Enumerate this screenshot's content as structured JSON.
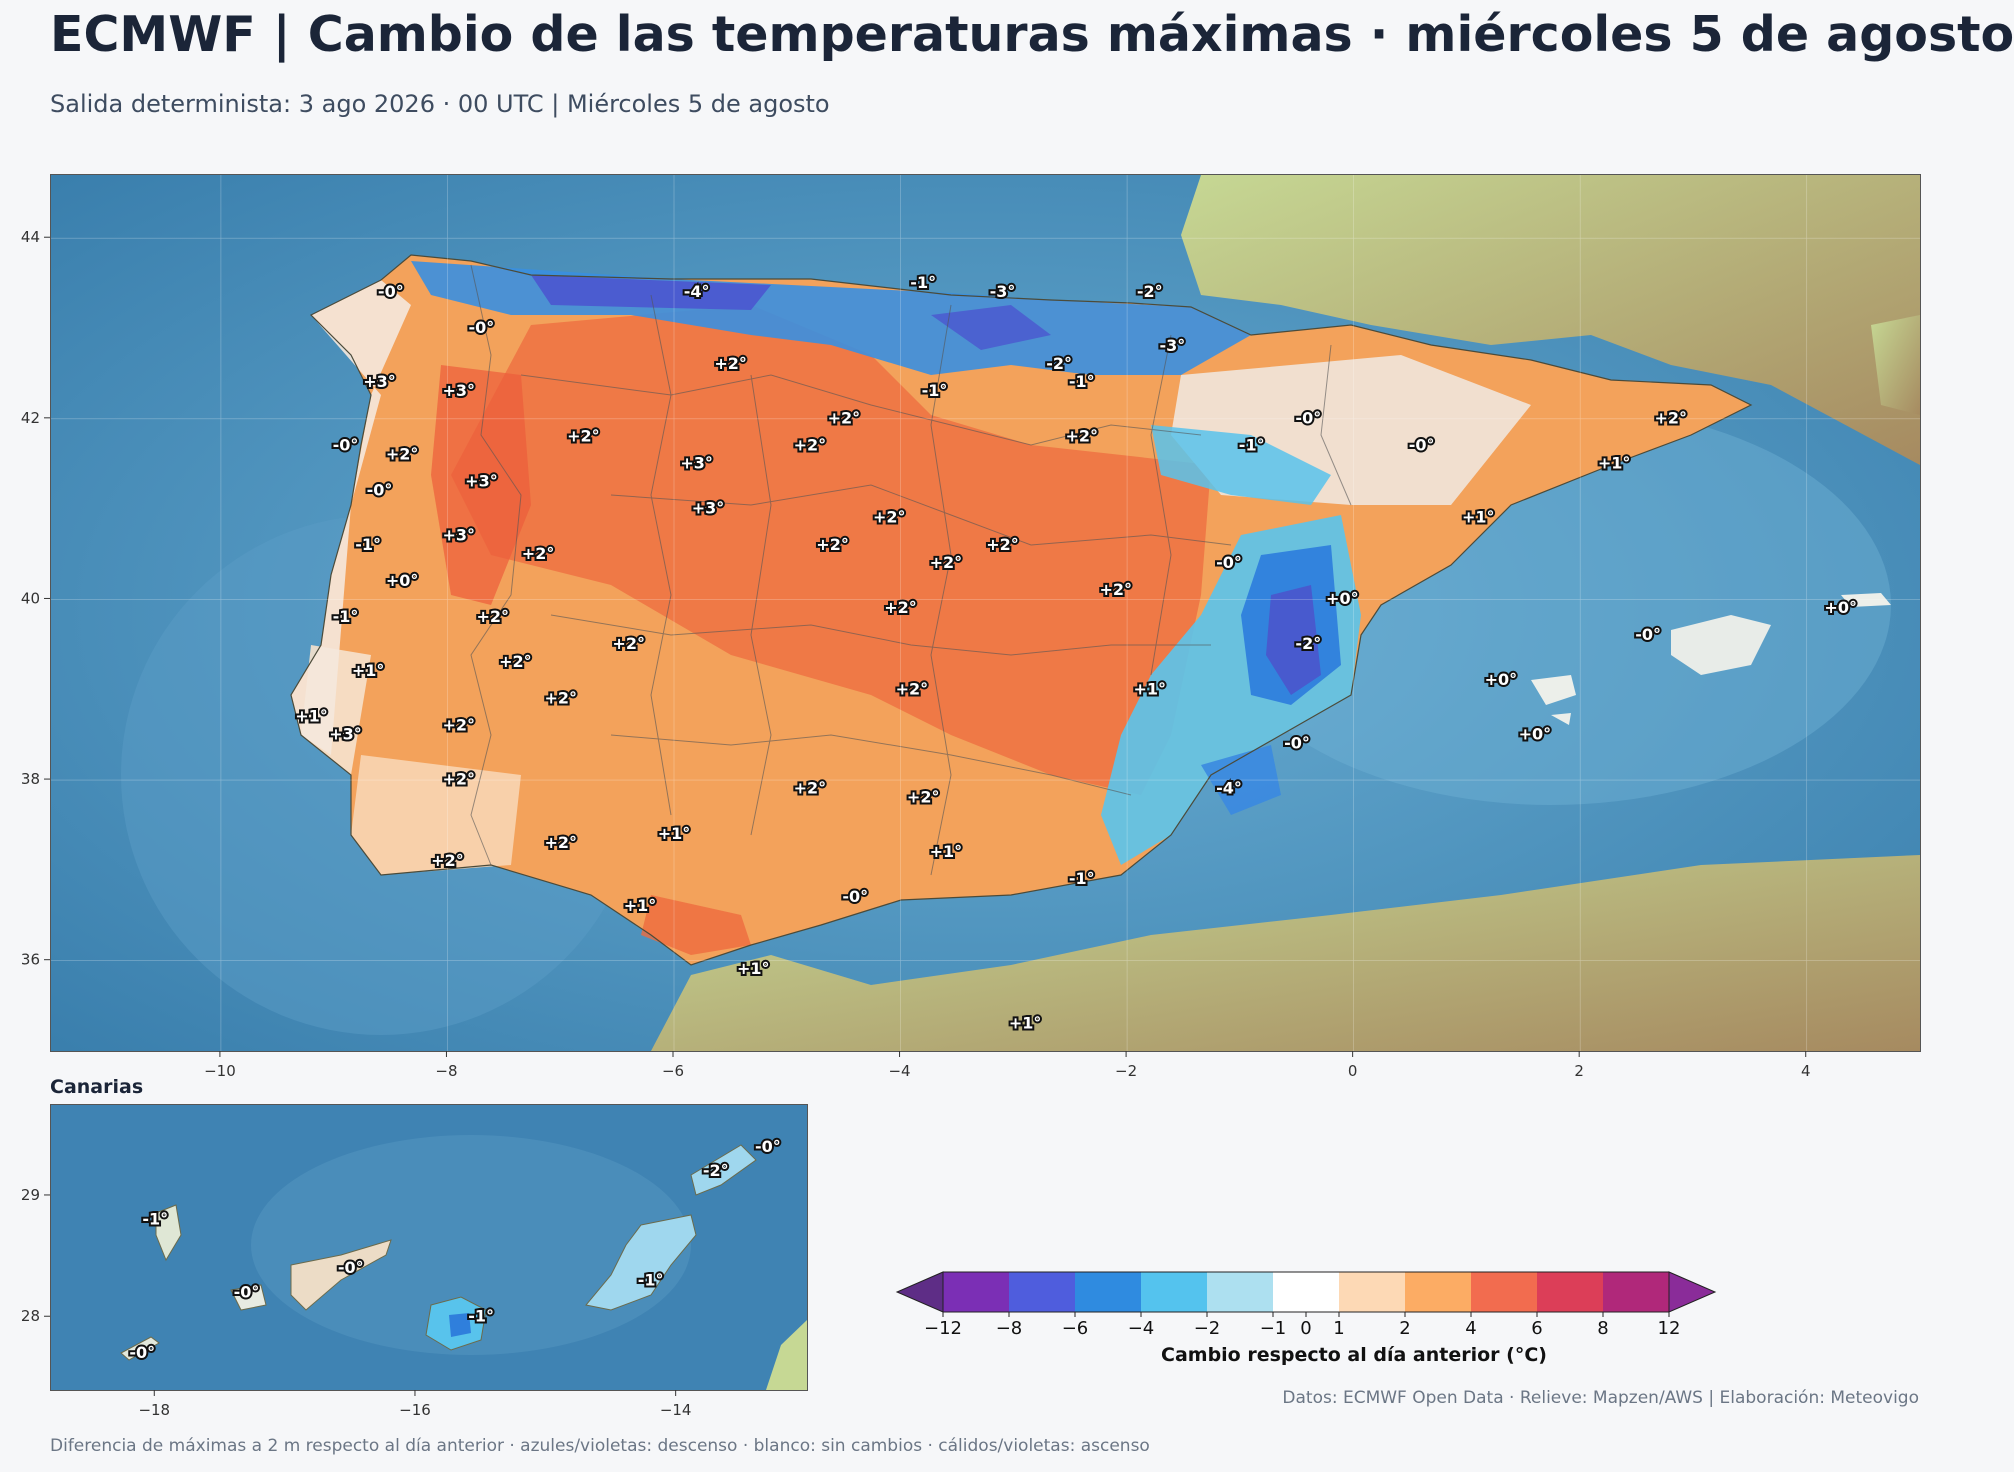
{
  "header": {
    "title": "ECMWF | Cambio de las temperaturas máximas · miércoles 5 de agosto",
    "subtitle": "Salida determinista: 3 ago 2026 · 00 UTC  |  Miércoles 5 de agosto"
  },
  "main_map": {
    "x_ticks": [
      "−10",
      "−8",
      "−6",
      "−4",
      "−2",
      "0",
      "2",
      "4"
    ],
    "y_ticks": [
      "44",
      "42",
      "40",
      "38",
      "36"
    ],
    "labels": [
      {
        "text": "-0°",
        "lon": -8.5,
        "lat": 43.4
      },
      {
        "text": "-0°",
        "lon": -7.7,
        "lat": 43.0
      },
      {
        "text": "-4°",
        "lon": -5.8,
        "lat": 43.4
      },
      {
        "text": "-1°",
        "lon": -3.8,
        "lat": 43.5
      },
      {
        "text": "-3°",
        "lon": -3.1,
        "lat": 43.4
      },
      {
        "text": "-2°",
        "lon": -1.8,
        "lat": 43.4
      },
      {
        "text": "-3°",
        "lon": -1.6,
        "lat": 42.8
      },
      {
        "text": "-2°",
        "lon": -2.6,
        "lat": 42.6
      },
      {
        "text": "-1°",
        "lon": -2.4,
        "lat": 42.4
      },
      {
        "text": "-1°",
        "lon": -3.7,
        "lat": 42.3
      },
      {
        "text": "+3°",
        "lon": -8.6,
        "lat": 42.4
      },
      {
        "text": "+3°",
        "lon": -7.9,
        "lat": 42.3
      },
      {
        "text": "+2°",
        "lon": -5.5,
        "lat": 42.6
      },
      {
        "text": "+2°",
        "lon": -4.5,
        "lat": 42.0
      },
      {
        "text": "+2°",
        "lon": -4.8,
        "lat": 41.7
      },
      {
        "text": "+2°",
        "lon": -6.8,
        "lat": 41.8
      },
      {
        "text": "-0°",
        "lon": -8.9,
        "lat": 41.7
      },
      {
        "text": "+2°",
        "lon": -8.4,
        "lat": 41.6
      },
      {
        "text": "+3°",
        "lon": -7.7,
        "lat": 41.3
      },
      {
        "text": "+3°",
        "lon": -5.8,
        "lat": 41.5
      },
      {
        "text": "+3°",
        "lon": -5.7,
        "lat": 41.0
      },
      {
        "text": "-0°",
        "lon": -8.6,
        "lat": 41.2
      },
      {
        "text": "+2°",
        "lon": -2.4,
        "lat": 41.8
      },
      {
        "text": "-0°",
        "lon": -0.4,
        "lat": 42.0
      },
      {
        "text": "-1°",
        "lon": -0.9,
        "lat": 41.7
      },
      {
        "text": "-0°",
        "lon": 0.6,
        "lat": 41.7
      },
      {
        "text": "+2°",
        "lon": 2.8,
        "lat": 42.0
      },
      {
        "text": "+1°",
        "lon": 2.3,
        "lat": 41.5
      },
      {
        "text": "+1°",
        "lon": 1.1,
        "lat": 40.9
      },
      {
        "text": "+2°",
        "lon": -4.1,
        "lat": 40.9
      },
      {
        "text": "+2°",
        "lon": -4.6,
        "lat": 40.6
      },
      {
        "text": "+2°",
        "lon": -3.1,
        "lat": 40.6
      },
      {
        "text": "+2°",
        "lon": -3.6,
        "lat": 40.4
      },
      {
        "text": "-1°",
        "lon": -8.7,
        "lat": 40.6
      },
      {
        "text": "+3°",
        "lon": -7.9,
        "lat": 40.7
      },
      {
        "text": "+2°",
        "lon": -7.2,
        "lat": 40.5
      },
      {
        "text": "+0°",
        "lon": -8.4,
        "lat": 40.2
      },
      {
        "text": "-0°",
        "lon": -1.1,
        "lat": 40.4
      },
      {
        "text": "+2°",
        "lon": -2.1,
        "lat": 40.1
      },
      {
        "text": "+0°",
        "lon": -0.1,
        "lat": 40.0
      },
      {
        "text": "+0°",
        "lon": 4.3,
        "lat": 39.9
      },
      {
        "text": "-1°",
        "lon": -8.9,
        "lat": 39.8
      },
      {
        "text": "+2°",
        "lon": -7.6,
        "lat": 39.8
      },
      {
        "text": "+2°",
        "lon": -4.0,
        "lat": 39.9
      },
      {
        "text": "+2°",
        "lon": -6.4,
        "lat": 39.5
      },
      {
        "text": "-2°",
        "lon": -0.4,
        "lat": 39.5
      },
      {
        "text": "-0°",
        "lon": 2.6,
        "lat": 39.6
      },
      {
        "text": "+1°",
        "lon": -8.7,
        "lat": 39.2
      },
      {
        "text": "+2°",
        "lon": -7.4,
        "lat": 39.3
      },
      {
        "text": "+2°",
        "lon": -7.0,
        "lat": 38.9
      },
      {
        "text": "+2°",
        "lon": -3.9,
        "lat": 39.0
      },
      {
        "text": "+1°",
        "lon": -1.8,
        "lat": 39.0
      },
      {
        "text": "+0°",
        "lon": 1.3,
        "lat": 39.1
      },
      {
        "text": "+0°",
        "lon": 1.6,
        "lat": 38.5
      },
      {
        "text": "+1°",
        "lon": -9.2,
        "lat": 38.7
      },
      {
        "text": "+3°",
        "lon": -8.9,
        "lat": 38.5
      },
      {
        "text": "+2°",
        "lon": -7.9,
        "lat": 38.6
      },
      {
        "text": "-0°",
        "lon": -0.5,
        "lat": 38.4
      },
      {
        "text": "+2°",
        "lon": -7.9,
        "lat": 38.0
      },
      {
        "text": "-4°",
        "lon": -1.1,
        "lat": 37.9
      },
      {
        "text": "+2°",
        "lon": -4.8,
        "lat": 37.9
      },
      {
        "text": "+2°",
        "lon": -3.8,
        "lat": 37.8
      },
      {
        "text": "+1°",
        "lon": -6.0,
        "lat": 37.4
      },
      {
        "text": "+2°",
        "lon": -7.0,
        "lat": 37.3
      },
      {
        "text": "+1°",
        "lon": -3.6,
        "lat": 37.2
      },
      {
        "text": "+2°",
        "lon": -8.0,
        "lat": 37.1
      },
      {
        "text": "-1°",
        "lon": -2.4,
        "lat": 36.9
      },
      {
        "text": "-0°",
        "lon": -4.4,
        "lat": 36.7
      },
      {
        "text": "+1°",
        "lon": -6.3,
        "lat": 36.6
      },
      {
        "text": "+1°",
        "lon": -5.3,
        "lat": 35.9
      },
      {
        "text": "+1°",
        "lon": -2.9,
        "lat": 35.3
      }
    ]
  },
  "inset": {
    "title": "Canarias",
    "x_ticks": [
      "−18",
      "−16",
      "−14"
    ],
    "y_ticks": [
      "29",
      "28"
    ],
    "labels": [
      {
        "text": "-0°",
        "lon": -13.3,
        "lat": 29.4
      },
      {
        "text": "-2°",
        "lon": -13.7,
        "lat": 29.2
      },
      {
        "text": "-1°",
        "lon": -18.0,
        "lat": 28.8
      },
      {
        "text": "-0°",
        "lon": -16.5,
        "lat": 28.4
      },
      {
        "text": "-0°",
        "lon": -17.3,
        "lat": 28.2
      },
      {
        "text": "-1°",
        "lon": -15.5,
        "lat": 28.0
      },
      {
        "text": "-1°",
        "lon": -14.2,
        "lat": 28.3
      },
      {
        "text": "-0°",
        "lon": -18.1,
        "lat": 27.7
      }
    ]
  },
  "colorbar": {
    "title": "Cambio respecto al día anterior (°C)",
    "tick_labels": [
      "−12",
      "−8",
      "−6",
      "−4",
      "−2",
      "−1",
      "0",
      "1",
      "2",
      "4",
      "6",
      "8",
      "12"
    ],
    "colors": [
      "#5e2d86",
      "#7b2fb5",
      "#4f5ddd",
      "#2f8be0",
      "#54c3ee",
      "#ade0f0",
      "#ffffff",
      "#fdd9b5",
      "#fcac64",
      "#f26c4f",
      "#dc3e58",
      "#b0287a",
      "#8a2c99"
    ]
  },
  "credits": "Datos: ECMWF Open Data · Relieve: Mapzen/AWS  |  Elaboración: Meteovigo",
  "footer": "Diferencia de máximas a 2 m respecto al día anterior · azules/violetas: descenso · blanco: sin cambios · cálidos/violetas: ascenso"
}
